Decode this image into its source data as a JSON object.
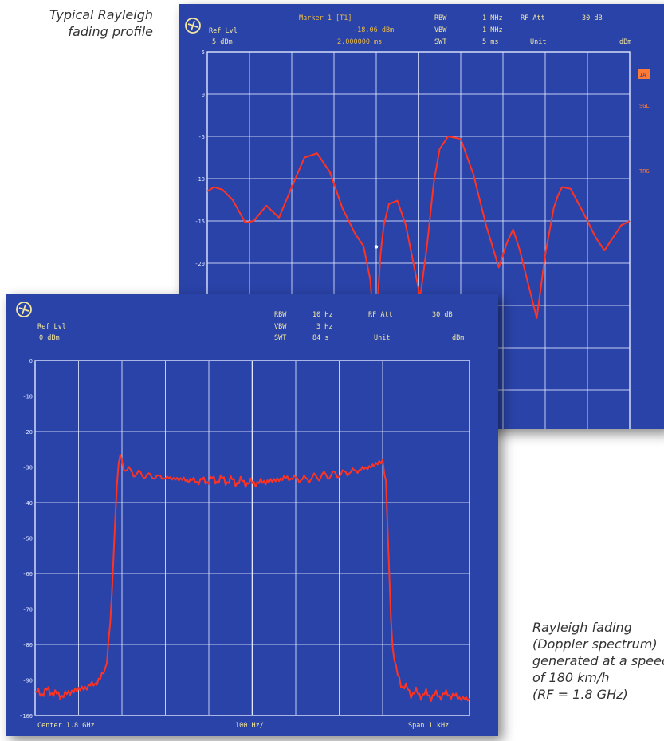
{
  "captions": {
    "top": [
      "Typical Rayleigh",
      "fading profile"
    ],
    "bottom": [
      "Rayleigh fading",
      "(Doppler spectrum)",
      "generated at a speed",
      "of 180 km/h",
      "(RF = 1.8 GHz)"
    ]
  },
  "colors": {
    "screen_bg": "#2a43a8",
    "grid": "#dfe6ff",
    "trace": "#ff3322",
    "header_text": "#f2e6a0",
    "marker_text": "#e9b94a",
    "side_label": "#ff7a33"
  },
  "chart_data": [
    {
      "type": "line",
      "header": {
        "logo_icon": "rohde-schwarz-logo-icon",
        "ref_lvl_label": "Ref Lvl",
        "ref_lvl_value": "5 dBm",
        "marker_label": "Marker 1 [T1]",
        "marker_level": "-18.06 dBm",
        "marker_time": "2.000000 ms",
        "rbw_label": "RBW",
        "rbw_value": "1 MHz",
        "vbw_label": "VBW",
        "vbw_value": "1 MHz",
        "swt_label": "SWT",
        "swt_value": "5 ms",
        "rf_att_label": "RF Att",
        "rf_att_value": "30 dB",
        "unit_label": "Unit",
        "unit_value": "dBm"
      },
      "side_labels": {
        "box": "1A",
        "sgl": "SGL",
        "mode": "TRG"
      },
      "yticks": [
        "5",
        "0",
        "-5",
        "-10",
        "-15",
        "-20",
        "-25",
        "-30"
      ],
      "ylim": [
        -45,
        5
      ],
      "xlim": [
        0,
        5
      ],
      "grid": true,
      "marker": {
        "x": 2.0,
        "y": -18.06
      },
      "x": [
        0,
        0.08,
        0.18,
        0.3,
        0.45,
        0.55,
        0.7,
        0.85,
        1.0,
        1.15,
        1.3,
        1.45,
        1.6,
        1.75,
        1.85,
        1.93,
        1.98,
        2.02,
        2.05,
        2.09,
        2.15,
        2.25,
        2.35,
        2.45,
        2.52,
        2.6,
        2.68,
        2.75,
        2.85,
        3.0,
        3.15,
        3.3,
        3.45,
        3.55,
        3.62,
        3.7,
        3.8,
        3.9,
        4.0,
        4.1,
        4.15,
        4.2,
        4.3,
        4.45,
        4.6,
        4.7,
        4.8,
        4.9,
        5.0
      ],
      "values": [
        -11.5,
        -11.0,
        -11.3,
        -12.5,
        -15.2,
        -15.0,
        -13.2,
        -14.6,
        -11.0,
        -7.5,
        -7.0,
        -9.2,
        -13.5,
        -16.5,
        -18.0,
        -22.0,
        -29.0,
        -24.0,
        -19.0,
        -15.5,
        -13.0,
        -12.6,
        -15.5,
        -20.5,
        -24.0,
        -18.0,
        -10.5,
        -6.5,
        -5.0,
        -5.3,
        -9.5,
        -15.5,
        -20.5,
        -17.5,
        -16.0,
        -18.5,
        -22.5,
        -26.5,
        -19.0,
        -13.5,
        -12.0,
        -11.0,
        -11.2,
        -14.0,
        -17.0,
        -18.5,
        -17.0,
        -15.5,
        -15.0
      ]
    },
    {
      "type": "line",
      "header": {
        "logo_icon": "rohde-schwarz-logo-icon",
        "ref_lvl_label": "Ref Lvl",
        "ref_lvl_value": "0 dBm",
        "rbw_label": "RBW",
        "rbw_value": "10 Hz",
        "vbw_label": "VBW",
        "vbw_value": "3 Hz",
        "swt_label": "SWT",
        "swt_value": "84 s",
        "rf_att_label": "RF Att",
        "rf_att_value": "30 dB",
        "unit_label": "Unit",
        "unit_value": "dBm"
      },
      "footer": {
        "center": "Center 1.8 GHz",
        "div": "100 Hz/",
        "span": "Span 1 kHz"
      },
      "yticks": [
        "0",
        "-10",
        "-20",
        "-30",
        "-40",
        "-50",
        "-60",
        "-70",
        "-80",
        "-90",
        "-100"
      ],
      "ylim": [
        -100,
        0
      ],
      "xlim": [
        -500,
        500
      ],
      "grid": true,
      "x": [
        -500,
        -470,
        -440,
        -410,
        -380,
        -350,
        -335,
        -325,
        -318,
        -312,
        -305,
        -295,
        -280,
        -260,
        -240,
        -200,
        -160,
        -120,
        -80,
        -40,
        0,
        40,
        80,
        120,
        160,
        200,
        240,
        270,
        290,
        300,
        308,
        315,
        322,
        332,
        345,
        365,
        390,
        420,
        450,
        480,
        500
      ],
      "values": [
        -94,
        -93,
        -94.5,
        -93,
        -92,
        -90,
        -85,
        -72,
        -50,
        -35,
        -27,
        -30,
        -31.5,
        -32,
        -32.5,
        -33,
        -33.5,
        -34,
        -33.5,
        -34,
        -34.5,
        -34,
        -33,
        -33.5,
        -32.5,
        -32,
        -31,
        -30,
        -29,
        -28,
        -35,
        -60,
        -80,
        -88,
        -91.5,
        -93.5,
        -94,
        -94.5,
        -94,
        -95,
        -95.5
      ]
    }
  ]
}
